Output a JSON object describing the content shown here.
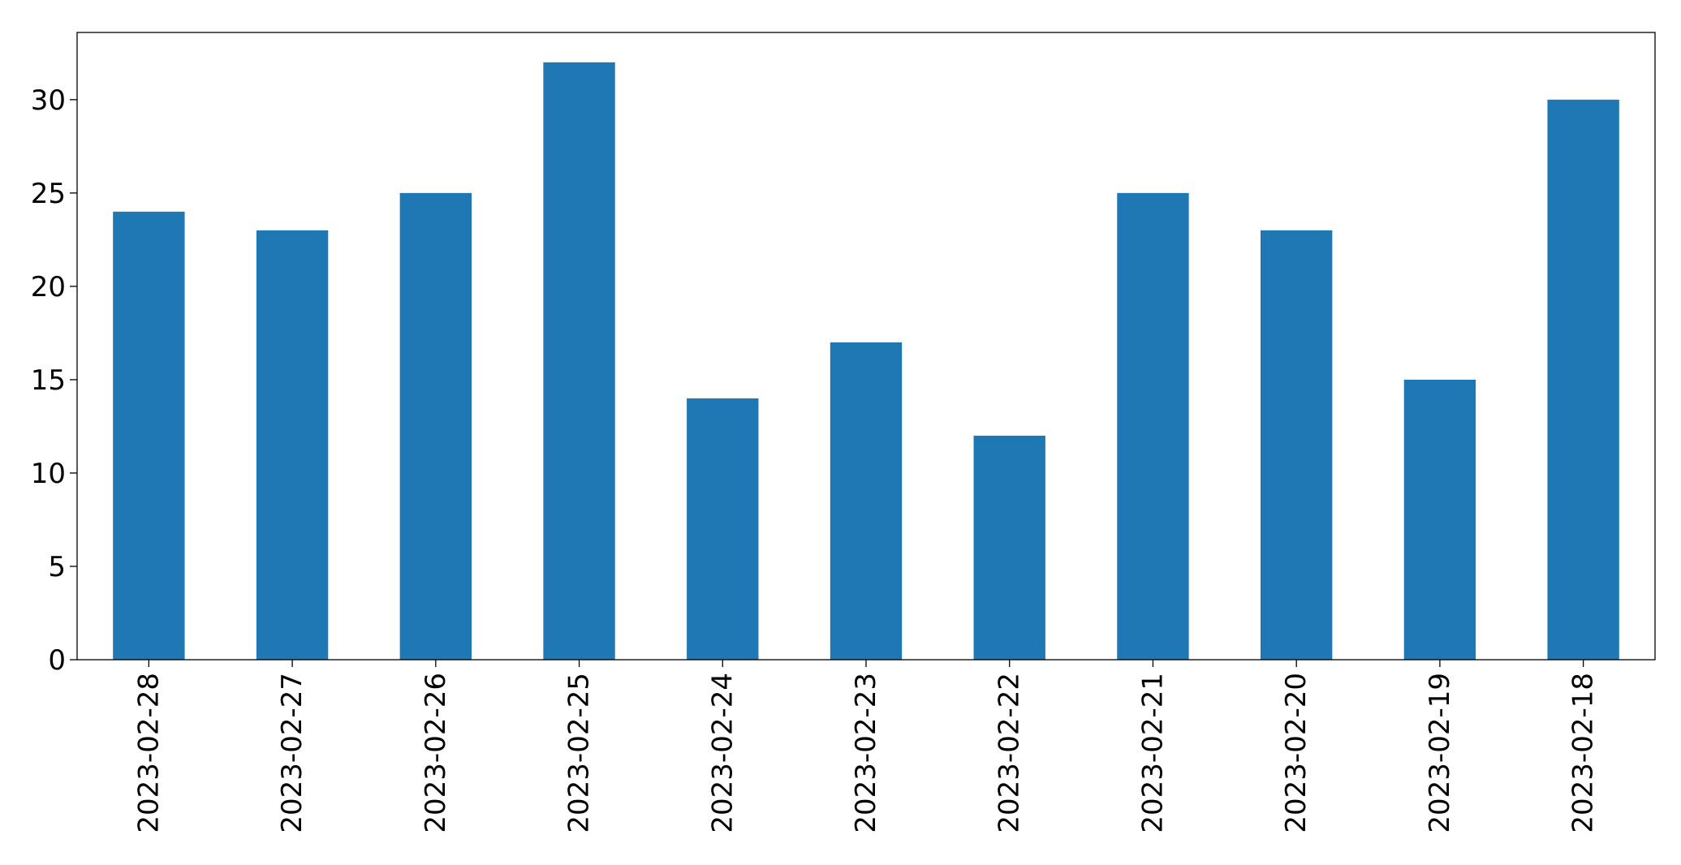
{
  "chart_data": {
    "type": "bar",
    "categories": [
      "2023-02-28",
      "2023-02-27",
      "2023-02-26",
      "2023-02-25",
      "2023-02-24",
      "2023-02-23",
      "2023-02-22",
      "2023-02-21",
      "2023-02-20",
      "2023-02-19",
      "2023-02-18"
    ],
    "values": [
      24,
      23,
      25,
      32,
      14,
      17,
      12,
      25,
      23,
      15,
      30
    ],
    "title": "",
    "xlabel": "",
    "ylabel": "",
    "ylim": [
      0,
      33.6
    ],
    "yticks": [
      0,
      5,
      10,
      15,
      20,
      25,
      30
    ],
    "grid": false,
    "legend": "none",
    "bar_color": "#1f77b4"
  }
}
